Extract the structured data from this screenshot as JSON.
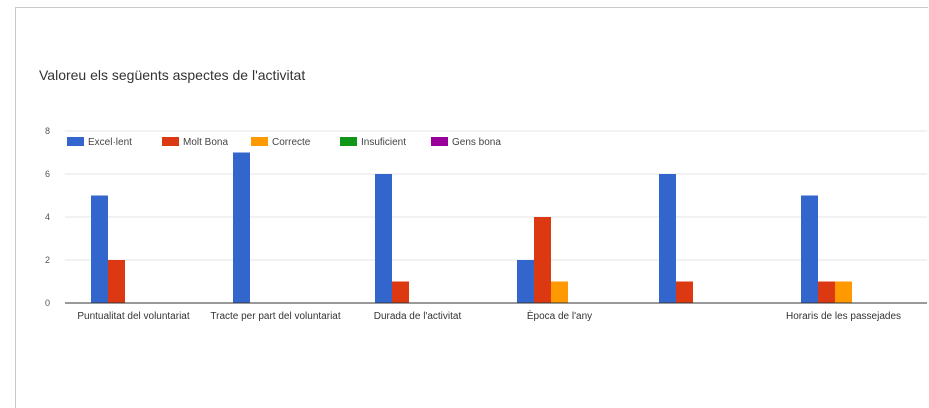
{
  "chart_data": {
    "type": "bar",
    "title": "Valoreu els següents aspectes de l'activitat",
    "categories": [
      "Puntualitat del voluntariat",
      "Tracte per part del voluntariat",
      "Durada de l'activitat",
      "Època de l'any",
      "",
      "Horaris de les passejades"
    ],
    "series": [
      {
        "name": "Excel·lent",
        "color": "#3366cc",
        "values": [
          5,
          7,
          6,
          2,
          6,
          5
        ]
      },
      {
        "name": "Molt Bona",
        "color": "#dc3912",
        "values": [
          2,
          0,
          1,
          4,
          1,
          1
        ]
      },
      {
        "name": "Correcte",
        "color": "#ff9900",
        "values": [
          0,
          0,
          0,
          1,
          0,
          1
        ]
      },
      {
        "name": "Insuficient",
        "color": "#109618",
        "values": [
          0,
          0,
          0,
          0,
          0,
          0
        ]
      },
      {
        "name": "Gens bona",
        "color": "#990099",
        "values": [
          0,
          0,
          0,
          0,
          0,
          0
        ]
      }
    ],
    "yticks": [
      0,
      2,
      4,
      6,
      8
    ],
    "ylim": [
      0,
      8
    ],
    "grid": true,
    "legend_position": "top-left"
  }
}
